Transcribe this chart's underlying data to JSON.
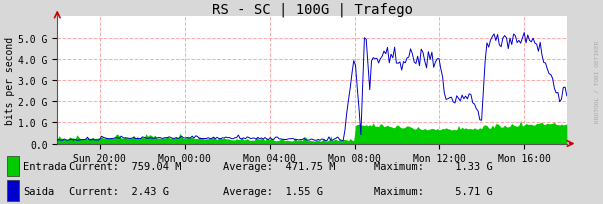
{
  "title": "RS - SC | 100G | Trafego",
  "ylabel": "bits per second",
  "background_color": "#d8d8d8",
  "plot_bg_color": "#ffffff",
  "grid_color": "#ffaaaa",
  "x_ticks_labels": [
    "Sun 20:00",
    "Mon 00:00",
    "Mon 04:00",
    "Mon 08:00",
    "Mon 12:00",
    "Mon 16:00"
  ],
  "y_ticks_labels": [
    "0.0",
    "1.0 G",
    "2.0 G",
    "3.0 G",
    "4.0 G",
    "5.0 G"
  ],
  "y_ticks_values": [
    0,
    1000000000,
    2000000000,
    3000000000,
    4000000000,
    5000000000
  ],
  "ylim_max": 6000000000,
  "entrada_color": "#00cc00",
  "saida_color": "#0000cc",
  "entrada_label": "Entrada",
  "saida_label": "Saida",
  "entrada_current": "759.04 M",
  "entrada_average": "471.75 M",
  "entrada_maximum": "1.33 G",
  "saida_current": "2.43 G",
  "saida_average": "1.55 G",
  "saida_maximum": "5.71 G",
  "arrow_color": "#cc0000",
  "watermark": "RRDTOOL / TOBI OETIKER",
  "title_fontsize": 10,
  "axis_fontsize": 7,
  "legend_fontsize": 7.5,
  "total_hours": 24,
  "x_tick_positions": [
    2,
    6,
    10,
    14,
    18,
    22
  ]
}
